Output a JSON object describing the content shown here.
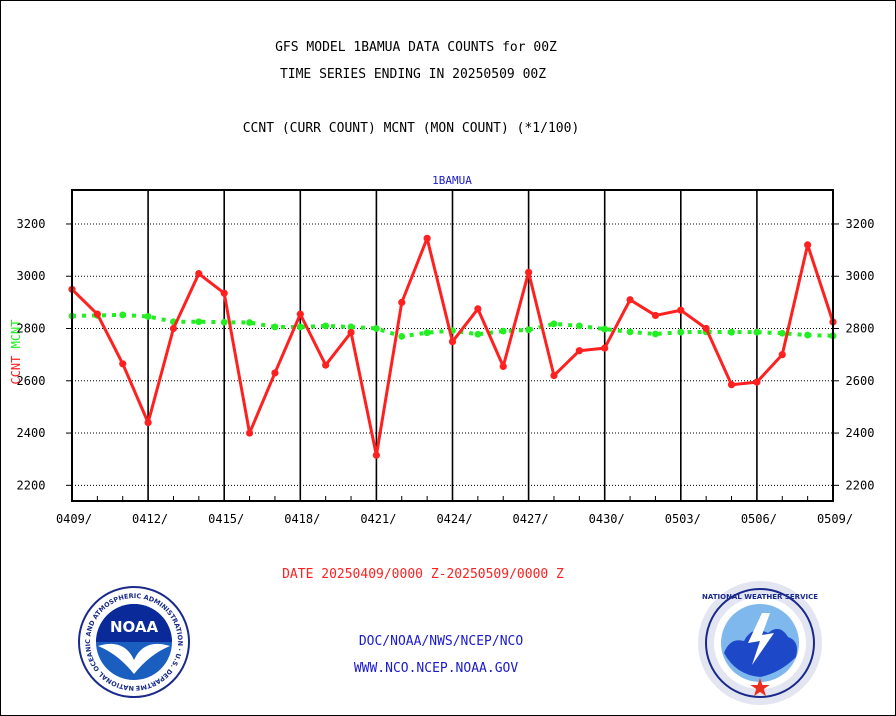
{
  "header": {
    "title_line1": "GFS MODEL 1BAMUA DATA COUNTS for 00Z",
    "title_line2": "TIME SERIES ENDING IN 20250509 00Z",
    "subtitle": "CCNT (CURR COUNT) MCNT (MON COUNT) (*1/100)"
  },
  "footer": {
    "date_range": "DATE 20250409/0000 Z-20250509/0000 Z",
    "org": "DOC/NOAA/NWS/NCEP/NCO",
    "url": "WWW.NCO.NCEP.NOAA.GOV"
  },
  "logos": {
    "noaa_text": "NOAA",
    "noaa_ring": "NATIONAL OCEANIC AND ATMOSPHERIC ADMINISTRATION · U.S. DEPARTMENT OF COMMERCE ·",
    "nws_ring": "NATIONAL WEATHER SERVICE"
  },
  "colors": {
    "ccnt": "#ff2020",
    "mcnt": "#22ee22",
    "title": "#000000",
    "date": "#ff2020",
    "link": "#1a1ad0",
    "panel_title": "#1a1ad0"
  },
  "chart_data": {
    "type": "line",
    "title": "1BAMUA",
    "ylabel_ccnt": "CCNT",
    "ylabel_mcnt": "MCNT",
    "ylim": [
      2140,
      3330
    ],
    "yticks": [
      2200,
      2400,
      2600,
      2800,
      3000,
      3200
    ],
    "ytick_labels": [
      "2200",
      "2400",
      "2600",
      "2800",
      "3000",
      "3200"
    ],
    "xtick_labels": [
      "0409/",
      "0412/",
      "0415/",
      "0418/",
      "0421/",
      "0424/",
      "0427/",
      "0430/",
      "0503/",
      "0506/",
      "0509/"
    ],
    "x_days": [
      0,
      1,
      2,
      3,
      4,
      5,
      6,
      7,
      8,
      9,
      10,
      11,
      12,
      13,
      14,
      15,
      16,
      17,
      18,
      19,
      20,
      21,
      22,
      23,
      24,
      25,
      26,
      27,
      28,
      29,
      30
    ],
    "grid": true,
    "series": [
      {
        "name": "CCNT",
        "values": [
          2950,
          2855,
          2665,
          2440,
          2800,
          3010,
          2935,
          2400,
          2630,
          2855,
          2660,
          2785,
          2315,
          2900,
          3145,
          2750,
          2875,
          2655,
          3015,
          2620,
          2715,
          2725,
          2910,
          2850,
          2870,
          2800,
          2585,
          2595,
          2700,
          3120,
          2825
        ]
      },
      {
        "name": "MCNT",
        "values": [
          2848,
          2850,
          2852,
          2846,
          2826,
          2826,
          2824,
          2823,
          2806,
          2806,
          2810,
          2806,
          2800,
          2770,
          2784,
          2792,
          2778,
          2790,
          2795,
          2818,
          2810,
          2798,
          2787,
          2779,
          2786,
          2787,
          2786,
          2786,
          2782,
          2775,
          2772
        ]
      }
    ]
  }
}
